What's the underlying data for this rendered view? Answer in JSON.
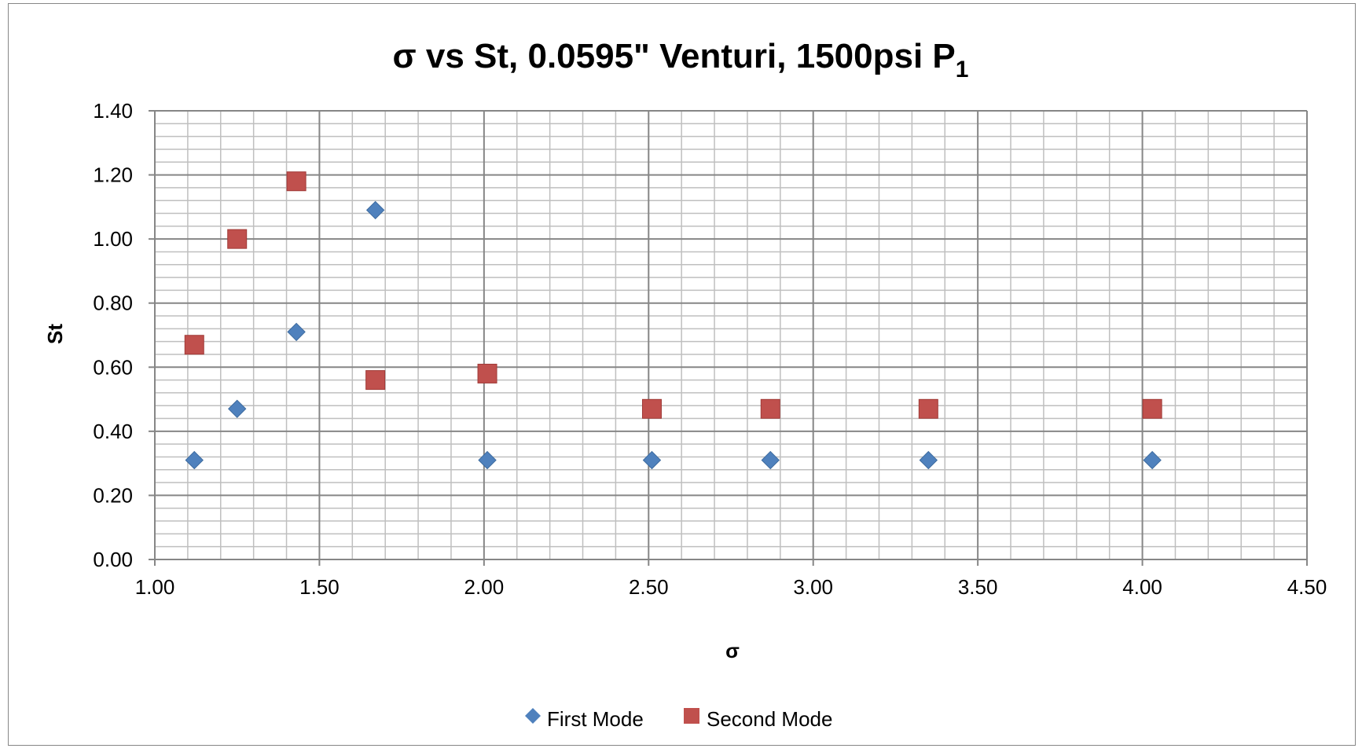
{
  "chart_data": {
    "type": "scatter",
    "title": "σ vs St, 0.0595\" Venturi, 1500psi P",
    "title_subscript": "1",
    "xlabel": "σ",
    "ylabel": "St",
    "xlim": [
      1.0,
      4.5
    ],
    "ylim": [
      0.0,
      1.4
    ],
    "x_ticks": [
      "1.00",
      "1.50",
      "2.00",
      "2.50",
      "3.00",
      "3.50",
      "4.00",
      "4.50"
    ],
    "y_ticks": [
      "0.00",
      "0.20",
      "0.40",
      "0.60",
      "0.80",
      "1.00",
      "1.20",
      "1.40"
    ],
    "grid": true,
    "legend_position": "bottom",
    "series": [
      {
        "name": "First Mode",
        "marker": "diamond",
        "color": "#4F81BD",
        "points": [
          [
            1.12,
            0.31
          ],
          [
            1.25,
            0.47
          ],
          [
            1.43,
            0.71
          ],
          [
            1.67,
            1.09
          ],
          [
            2.01,
            0.31
          ],
          [
            2.51,
            0.31
          ],
          [
            2.87,
            0.31
          ],
          [
            3.35,
            0.31
          ],
          [
            4.03,
            0.31
          ]
        ]
      },
      {
        "name": "Second Mode",
        "marker": "square",
        "color": "#C0504D",
        "points": [
          [
            1.12,
            0.67
          ],
          [
            1.25,
            1.0
          ],
          [
            1.43,
            1.18
          ],
          [
            1.67,
            0.56
          ],
          [
            2.01,
            0.58
          ],
          [
            2.51,
            0.47
          ],
          [
            2.87,
            0.47
          ],
          [
            3.35,
            0.47
          ],
          [
            4.03,
            0.47
          ]
        ]
      }
    ]
  }
}
